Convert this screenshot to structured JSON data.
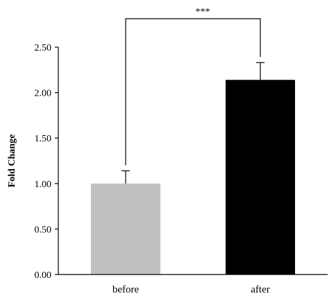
{
  "chart_data": {
    "type": "bar",
    "categories": [
      "before",
      "after"
    ],
    "values": [
      1.0,
      2.14
    ],
    "errors": [
      0.14,
      0.19
    ],
    "colors": [
      "#c0c0c0",
      "#000000"
    ],
    "title": "",
    "xlabel": "",
    "ylabel": "Fold Change",
    "ylim": [
      0,
      2.5
    ],
    "yticks": [
      "0.00",
      "0.50",
      "1.00",
      "1.50",
      "2.00",
      "2.50"
    ],
    "ytick_values": [
      0,
      0.5,
      1.0,
      1.5,
      2.0,
      2.5
    ],
    "grid": false,
    "legend": "none",
    "annotations": [
      {
        "text": "***",
        "between": [
          "before",
          "after"
        ]
      }
    ]
  }
}
